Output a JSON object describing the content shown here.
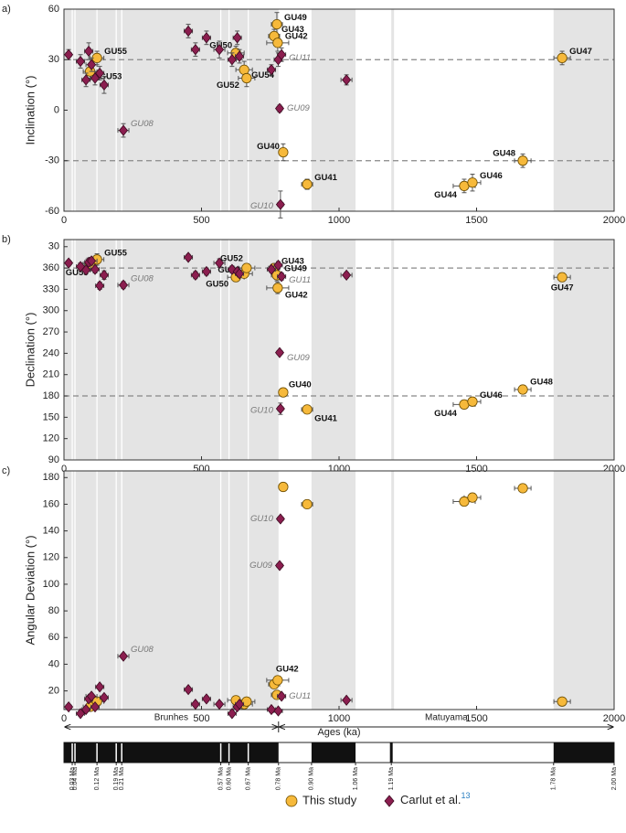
{
  "chart_data": [
    {
      "type": "scatter",
      "panel": "a)",
      "ylabel": "Inclination (°)",
      "xlim": [
        0,
        2000
      ],
      "xticks": [
        0,
        500,
        1000,
        1500,
        2000
      ],
      "ylim": [
        -60,
        60
      ],
      "yticks": [
        -60,
        -30,
        0,
        30,
        60
      ],
      "dashed_lines": [
        30,
        -30
      ],
      "shaded": [
        [
          0,
          780
        ],
        [
          900,
          1060
        ],
        [
          1190,
          1200
        ],
        [
          1780,
          2000
        ]
      ],
      "excursions": [
        30,
        40,
        120,
        190,
        210,
        570,
        600,
        670
      ],
      "series": [
        {
          "name": "This study",
          "color": "#f6b93b",
          "marker": "circle",
          "x": [
            95,
            120,
            625,
            655,
            664,
            764,
            774,
            777,
            797,
            884,
            1455,
            1485,
            1668,
            1811
          ],
          "values": [
            23,
            31,
            34,
            24,
            19,
            44,
            51,
            40,
            -25,
            -44,
            -45,
            -43,
            -30,
            31
          ],
          "xerr": [
            25,
            25,
            30,
            30,
            30,
            20,
            20,
            40,
            15,
            20,
            40,
            30,
            30,
            30
          ],
          "yerr": [
            4,
            4,
            4,
            5,
            5,
            4,
            7,
            5,
            5,
            3,
            4,
            5,
            4,
            4
          ],
          "labels": [
            "GU53",
            "GU55",
            "GU50",
            "GU54",
            "GU52",
            "GU43",
            "GU49",
            "GU42",
            "GU40",
            "GU41",
            "GU44",
            "GU46",
            "GU48",
            "GU47"
          ]
        },
        {
          "name": "Carlut et al.",
          "name_ref": "13",
          "color": "#8b1e4f",
          "marker": "diamond",
          "x": [
            17,
            60,
            80,
            90,
            100,
            113,
            130,
            146,
            216,
            452,
            478,
            518,
            565,
            611,
            630,
            638,
            754,
            779,
            791,
            1027,
            784,
            787
          ],
          "values": [
            33,
            29,
            18,
            35,
            27,
            19,
            22,
            15,
            -12,
            47,
            36,
            43,
            36,
            30,
            43,
            32,
            24,
            30,
            33,
            18,
            1,
            -56
          ],
          "xerr": [
            10,
            15,
            15,
            15,
            20,
            15,
            15,
            15,
            20,
            15,
            15,
            15,
            20,
            15,
            15,
            15,
            15,
            15,
            15,
            20,
            10,
            10
          ],
          "yerr": [
            3,
            4,
            4,
            5,
            4,
            4,
            4,
            5,
            4,
            4,
            4,
            4,
            5,
            4,
            4,
            4,
            3,
            4,
            4,
            3,
            2,
            8
          ],
          "labels": [
            null,
            null,
            null,
            null,
            null,
            null,
            null,
            null,
            "GU08",
            null,
            null,
            null,
            null,
            null,
            null,
            null,
            null,
            null,
            "GU11",
            null,
            "GU09",
            "GU10"
          ]
        }
      ]
    },
    {
      "type": "scatter",
      "panel": "b)",
      "ylabel": "Declination (°)",
      "xlim": [
        0,
        2000
      ],
      "xticks": [
        0,
        500,
        1000,
        1500,
        2000
      ],
      "ylim": [
        90,
        400
      ],
      "yticks": [
        90,
        120,
        150,
        180,
        210,
        240,
        270,
        300,
        330,
        360,
        {
          "value": 390,
          "label": "30"
        }
      ],
      "dashed_lines": [
        360,
        180
      ],
      "shaded": [
        [
          0,
          780
        ],
        [
          900,
          1060
        ],
        [
          1190,
          1200
        ],
        [
          1780,
          2000
        ]
      ],
      "excursions": [
        30,
        40,
        120,
        190,
        210,
        570,
        600,
        670
      ],
      "series": [
        {
          "name": "This study",
          "color": "#f6b93b",
          "marker": "circle",
          "x": [
            95,
            120,
            625,
            655,
            664,
            764,
            774,
            777,
            797,
            884,
            1455,
            1485,
            1668,
            1811
          ],
          "values": [
            366,
            372,
            347,
            352,
            360,
            360,
            350,
            332,
            185,
            161,
            168,
            172,
            189,
            347
          ],
          "xerr": [
            25,
            25,
            30,
            30,
            30,
            20,
            20,
            40,
            15,
            20,
            40,
            30,
            30,
            30
          ],
          "yerr": [
            6,
            8,
            6,
            6,
            6,
            6,
            8,
            8,
            4,
            4,
            6,
            6,
            5,
            6
          ],
          "labels": [
            "GU53",
            "GU55",
            "GU50",
            "GU54",
            "GU52",
            "GU43",
            "GU49",
            "GU42",
            "GU40",
            "GU41",
            "GU44",
            "GU46",
            "GU48",
            "GU47"
          ]
        },
        {
          "name": "Carlut et al.",
          "color": "#8b1e4f",
          "marker": "diamond",
          "x": [
            17,
            60,
            80,
            90,
            100,
            113,
            130,
            146,
            216,
            452,
            478,
            518,
            565,
            611,
            630,
            638,
            754,
            779,
            791,
            1027,
            784,
            787
          ],
          "values": [
            367,
            362,
            357,
            368,
            370,
            358,
            335,
            350,
            336,
            375,
            350,
            355,
            367,
            358,
            355,
            352,
            358,
            364,
            348,
            350,
            241,
            162
          ],
          "xerr": [
            10,
            15,
            15,
            15,
            20,
            15,
            15,
            15,
            20,
            15,
            15,
            15,
            20,
            15,
            15,
            15,
            15,
            15,
            15,
            20,
            10,
            10
          ],
          "yerr": [
            4,
            5,
            5,
            6,
            5,
            5,
            5,
            6,
            5,
            4,
            5,
            5,
            6,
            5,
            5,
            5,
            4,
            5,
            5,
            4,
            3,
            8
          ],
          "labels": [
            null,
            null,
            null,
            null,
            null,
            null,
            null,
            null,
            "GU08",
            null,
            null,
            null,
            null,
            null,
            null,
            null,
            null,
            null,
            "GU11",
            null,
            "GU09",
            "GU10"
          ]
        }
      ]
    },
    {
      "type": "scatter",
      "panel": "c)",
      "ylabel": "Angular Deviation (°)",
      "xlabel": "Ages (ka)",
      "xlim": [
        0,
        2000
      ],
      "xticks": [
        0,
        500,
        1000,
        1500,
        2000
      ],
      "ylim": [
        6,
        185
      ],
      "yticks": [
        20,
        40,
        60,
        80,
        100,
        120,
        140,
        160,
        180
      ],
      "dashed_lines": [],
      "shaded": [
        [
          0,
          780
        ],
        [
          900,
          1060
        ],
        [
          1190,
          1200
        ],
        [
          1780,
          2000
        ]
      ],
      "excursions": [
        30,
        40,
        120,
        190,
        210,
        570,
        600,
        670
      ],
      "series": [
        {
          "name": "This study",
          "color": "#f6b93b",
          "marker": "circle",
          "x": [
            95,
            120,
            625,
            655,
            664,
            764,
            774,
            777,
            797,
            884,
            1455,
            1485,
            1668,
            1811
          ],
          "values": [
            8,
            12,
            13,
            10,
            12,
            25,
            17,
            28,
            173,
            160,
            162,
            165,
            172,
            12
          ],
          "xerr": [
            25,
            25,
            30,
            30,
            30,
            20,
            20,
            40,
            15,
            20,
            40,
            30,
            30,
            30
          ],
          "labels": [
            null,
            null,
            null,
            null,
            null,
            null,
            null,
            "GU42",
            null,
            null,
            null,
            null,
            null,
            null
          ]
        },
        {
          "name": "Carlut et al.",
          "color": "#8b1e4f",
          "marker": "diamond",
          "x": [
            17,
            60,
            80,
            90,
            100,
            113,
            130,
            146,
            216,
            452,
            478,
            518,
            565,
            611,
            630,
            638,
            754,
            779,
            791,
            1027,
            784,
            787
          ],
          "values": [
            8,
            3,
            6,
            14,
            16,
            8,
            23,
            15,
            46,
            21,
            10,
            14,
            10,
            3,
            8,
            10,
            6,
            5,
            16,
            13,
            114,
            149
          ],
          "xerr": [
            10,
            15,
            15,
            15,
            20,
            15,
            15,
            15,
            20,
            15,
            15,
            15,
            20,
            15,
            15,
            15,
            15,
            15,
            15,
            20,
            10,
            10
          ],
          "labels": [
            null,
            null,
            null,
            null,
            null,
            null,
            null,
            null,
            "GU08",
            null,
            null,
            null,
            null,
            null,
            null,
            null,
            null,
            null,
            "GU11",
            null,
            "GU09",
            "GU10"
          ]
        }
      ]
    }
  ],
  "timescale": {
    "xlim": [
      0,
      2
    ],
    "chrons": [
      {
        "name": "Brunhes",
        "range": [
          0,
          0.78
        ]
      },
      {
        "name": "Matuyama",
        "range": [
          0.78,
          2
        ]
      }
    ],
    "normal": [
      [
        0,
        0.78
      ],
      [
        0.9,
        1.06
      ],
      [
        1.78,
        2
      ]
    ],
    "excursions": [
      0.03,
      0.04,
      0.12,
      0.19,
      0.21,
      0.57,
      0.6,
      0.67
    ],
    "events": [
      1.19
    ],
    "ticks": [
      {
        "value": 0.03,
        "label": "0.03 Ma"
      },
      {
        "value": 0.04,
        "label": "0.04 Ma"
      },
      {
        "value": 0.12,
        "label": "0.12 Ma"
      },
      {
        "value": 0.19,
        "label": "0.19 Ma"
      },
      {
        "value": 0.21,
        "label": "0.21 Ma"
      },
      {
        "value": 0.57,
        "label": "0.57 Ma"
      },
      {
        "value": 0.6,
        "label": "0.60 Ma"
      },
      {
        "value": 0.67,
        "label": "0.67 Ma"
      },
      {
        "value": 0.78,
        "label": "0.78 Ma"
      },
      {
        "value": 0.9,
        "label": "0.90 Ma"
      },
      {
        "value": 1.06,
        "label": "1.06 Ma"
      },
      {
        "value": 1.19,
        "label": "1.19 Ma"
      },
      {
        "value": 1.78,
        "label": "1.78 Ma"
      },
      {
        "value": 2,
        "label": "2.00 Ma"
      }
    ]
  }
}
